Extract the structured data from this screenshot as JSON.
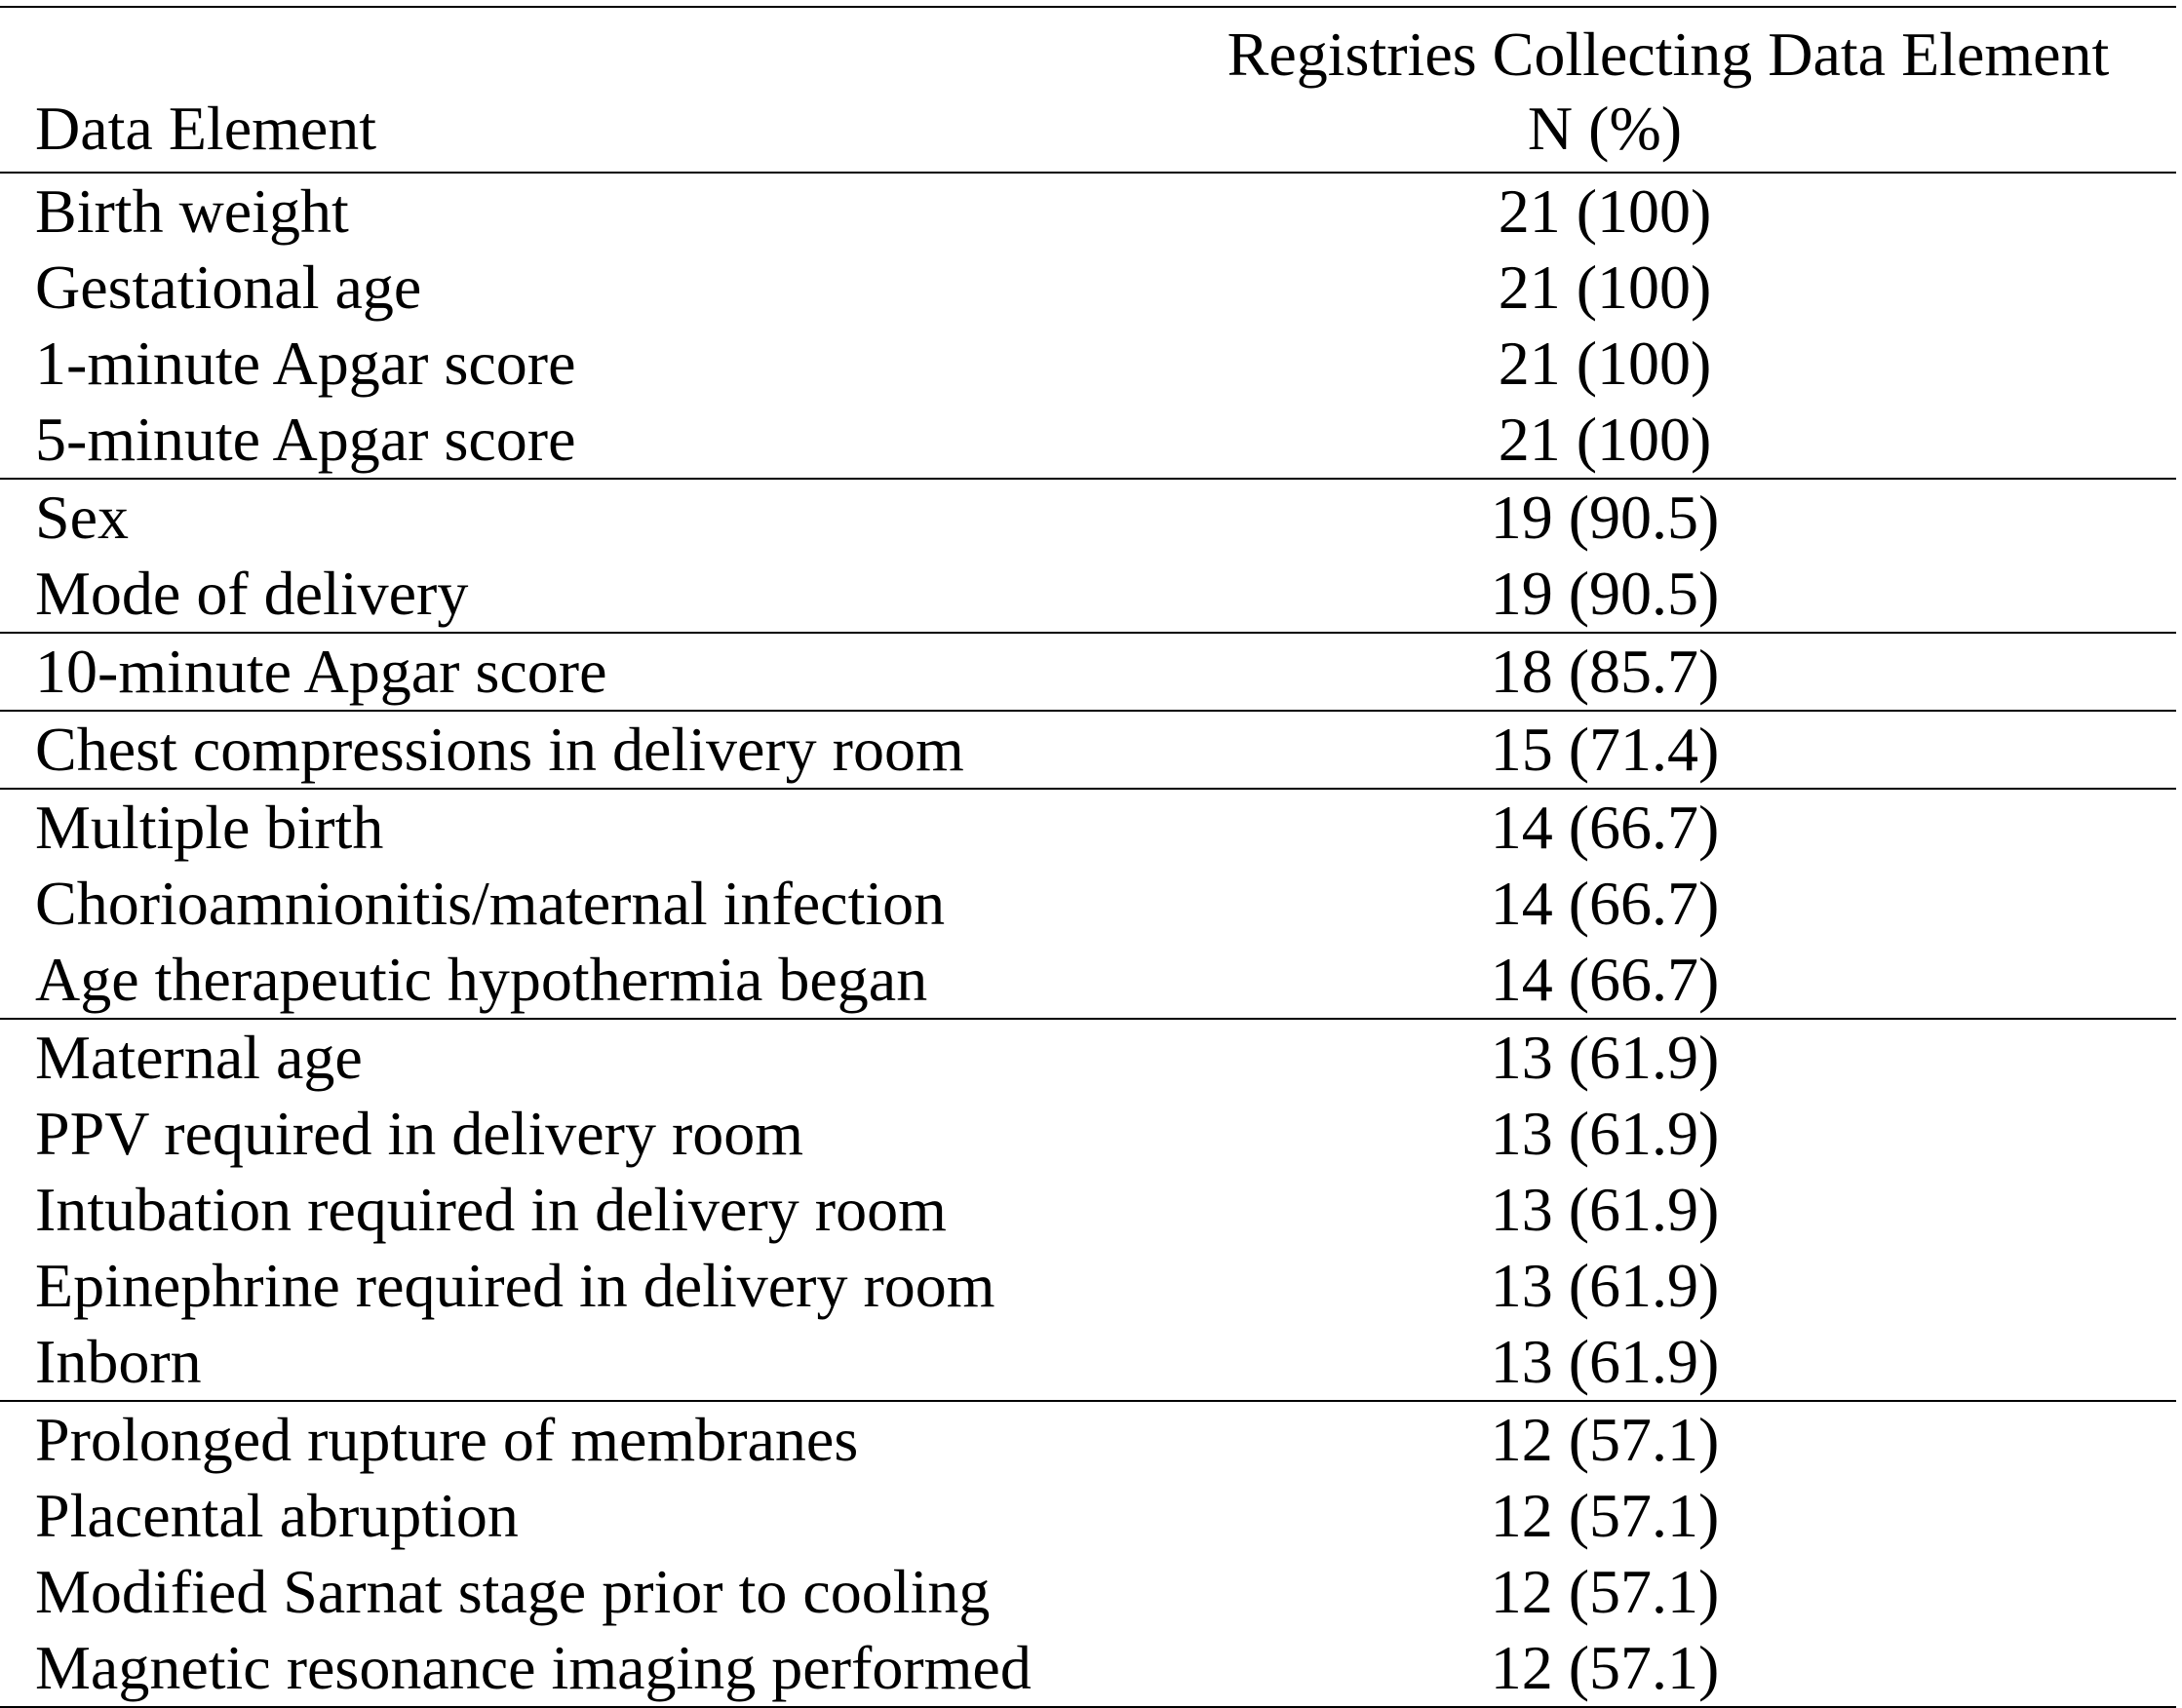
{
  "table": {
    "header": {
      "element": "Data Element",
      "count_line1": "Registries Collecting Data Element",
      "count_line2": "N (%)"
    },
    "groups": [
      {
        "rows": [
          {
            "element": "Birth weight",
            "value": "21 (100)"
          },
          {
            "element": "Gestational age",
            "value": "21 (100)"
          },
          {
            "element": "1-minute Apgar score",
            "value": "21 (100)"
          },
          {
            "element": "5-minute Apgar score",
            "value": "21 (100)"
          }
        ]
      },
      {
        "rows": [
          {
            "element": "Sex",
            "value": "19 (90.5)"
          },
          {
            "element": "Mode of delivery",
            "value": "19 (90.5)"
          }
        ]
      },
      {
        "rows": [
          {
            "element": "10-minute Apgar score",
            "value": "18 (85.7)"
          }
        ]
      },
      {
        "rows": [
          {
            "element": "Chest compressions in delivery room",
            "value": "15 (71.4)"
          }
        ]
      },
      {
        "rows": [
          {
            "element": "Multiple birth",
            "value": "14 (66.7)"
          },
          {
            "element": "Chorioamnionitis/maternal infection",
            "value": "14 (66.7)"
          },
          {
            "element": "Age therapeutic hypothermia began",
            "value": "14 (66.7)"
          }
        ]
      },
      {
        "rows": [
          {
            "element": "Maternal age",
            "value": "13 (61.9)"
          },
          {
            "element": "PPV required in delivery room",
            "value": "13 (61.9)"
          },
          {
            "element": "Intubation required in delivery room",
            "value": "13 (61.9)"
          },
          {
            "element": "Epinephrine required in delivery room",
            "value": "13 (61.9)"
          },
          {
            "element": "Inborn",
            "value": "13 (61.9)"
          }
        ]
      },
      {
        "rows": [
          {
            "element": "Prolonged rupture of membranes",
            "value": "12 (57.1)"
          },
          {
            "element": "Placental abruption",
            "value": "12 (57.1)"
          },
          {
            "element": "Modified Sarnat stage prior to cooling",
            "value": "12 (57.1)"
          },
          {
            "element": "Magnetic resonance imaging performed",
            "value": "12 (57.1)"
          }
        ]
      }
    ]
  }
}
